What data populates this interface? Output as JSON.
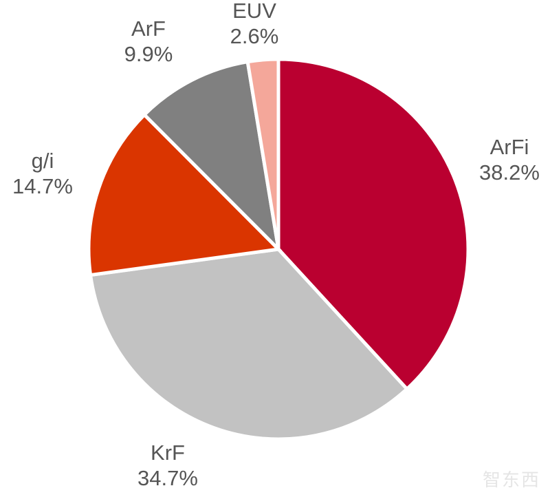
{
  "chart_data": {
    "type": "pie",
    "slices": [
      {
        "label": "ArFi",
        "value": 38.2,
        "value_label": "38.2%",
        "color": "#BA0030"
      },
      {
        "label": "KrF",
        "value": 34.7,
        "value_label": "34.7%",
        "color": "#C2C2C2"
      },
      {
        "label": "g/i",
        "value": 14.7,
        "value_label": "14.7%",
        "color": "#DA3500"
      },
      {
        "label": "ArF",
        "value": 9.9,
        "value_label": "9.9%",
        "color": "#808080"
      },
      {
        "label": "EUV",
        "value": 2.6,
        "value_label": "2.6%",
        "color": "#F4A79A"
      }
    ],
    "label_color": "#555555"
  },
  "watermark": {
    "text": "智东西"
  }
}
